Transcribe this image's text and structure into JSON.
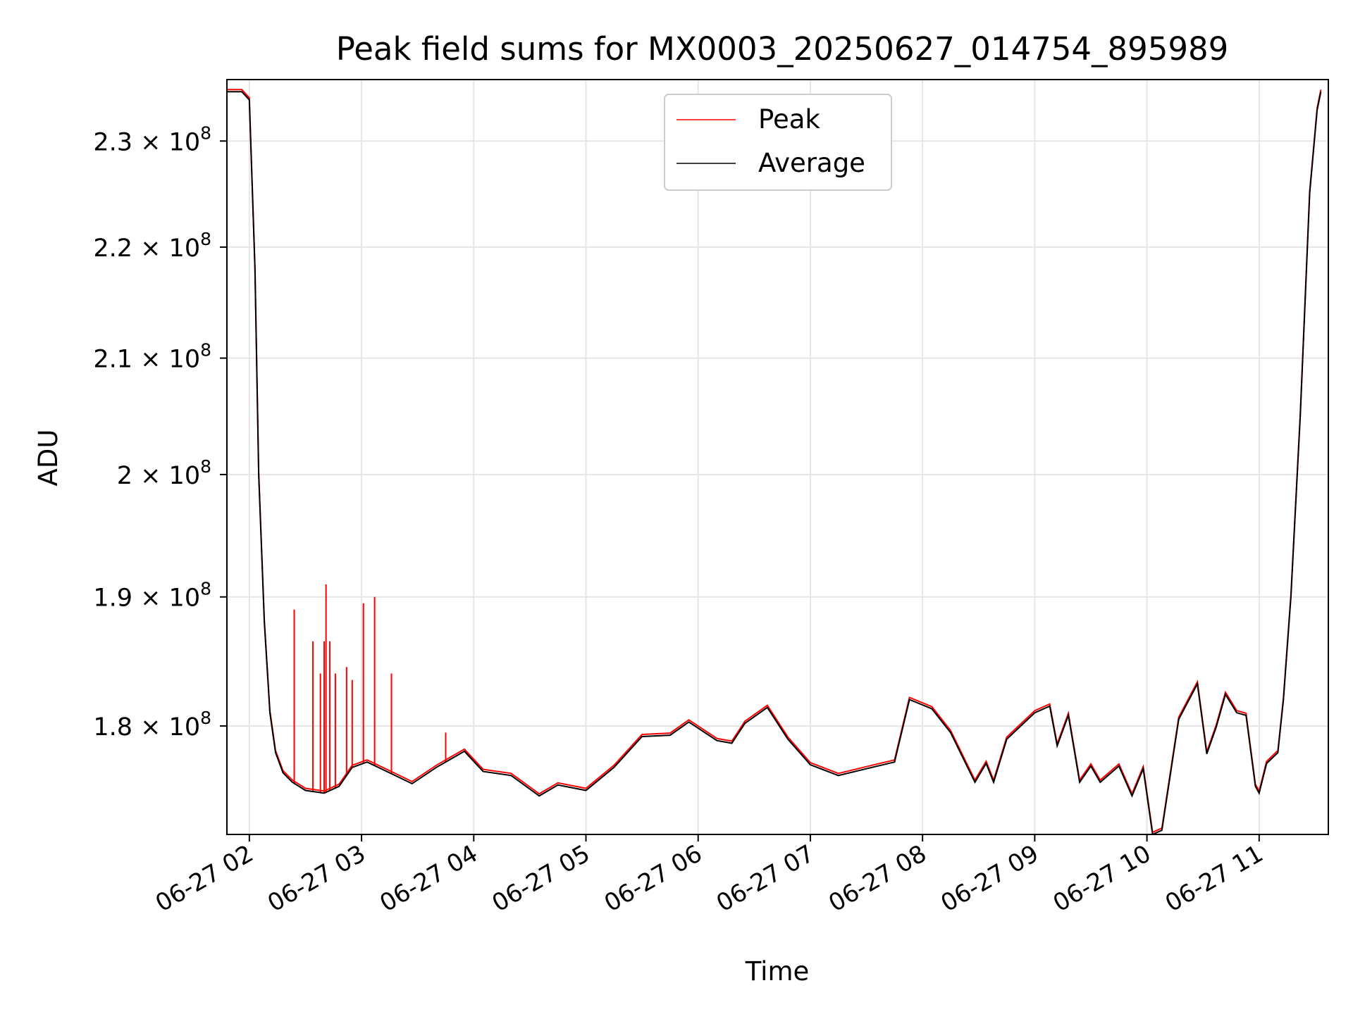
{
  "chart_data": {
    "type": "line",
    "title": "Peak field sums for MX0003_20250627_014754_895989",
    "xlabel": "Time",
    "ylabel": "ADU",
    "xlim": [
      "2025-06-27 01:48",
      "2025-06-27 11:37"
    ],
    "ylim": [
      172000000,
      236000000
    ],
    "yscale": "log",
    "grid": true,
    "legend": "upper center",
    "x_ticks": [
      "2025-06-27 02:00",
      "2025-06-27 03:00",
      "2025-06-27 04:00",
      "2025-06-27 05:00",
      "2025-06-27 06:00",
      "2025-06-27 07:00",
      "2025-06-27 08:00",
      "2025-06-27 09:00",
      "2025-06-27 10:00",
      "2025-06-27 11:00"
    ],
    "x_tick_labels": [
      "06-27 02",
      "06-27 03",
      "06-27 04",
      "06-27 05",
      "06-27 06",
      "06-27 07",
      "06-27 08",
      "06-27 09",
      "06-27 10",
      "06-27 11"
    ],
    "y_ticks": [
      180000000,
      190000000,
      200000000,
      210000000,
      220000000,
      230000000
    ],
    "y_tick_labels": [
      {
        "mantissa": "1.8",
        "exponent": "8"
      },
      {
        "mantissa": "1.9",
        "exponent": "8"
      },
      {
        "mantissa": "2",
        "exponent": "8"
      },
      {
        "mantissa": "2.1",
        "exponent": "8"
      },
      {
        "mantissa": "2.2",
        "exponent": "8"
      },
      {
        "mantissa": "2.3",
        "exponent": "8"
      }
    ],
    "series": [
      {
        "name": "Average",
        "color": "#000000",
        "x": [
          "2025-06-27 01:48",
          "2025-06-27 01:56",
          "2025-06-27 02:00",
          "2025-06-27 02:03",
          "2025-06-27 02:05",
          "2025-06-27 02:08",
          "2025-06-27 02:11",
          "2025-06-27 02:14",
          "2025-06-27 02:18",
          "2025-06-27 02:23",
          "2025-06-27 02:30",
          "2025-06-27 02:40",
          "2025-06-27 02:48",
          "2025-06-27 02:55",
          "2025-06-27 03:03",
          "2025-06-27 03:15",
          "2025-06-27 03:27",
          "2025-06-27 03:40",
          "2025-06-27 03:55",
          "2025-06-27 04:05",
          "2025-06-27 04:20",
          "2025-06-27 04:35",
          "2025-06-27 04:45",
          "2025-06-27 05:00",
          "2025-06-27 05:15",
          "2025-06-27 05:30",
          "2025-06-27 05:45",
          "2025-06-27 05:55",
          "2025-06-27 06:10",
          "2025-06-27 06:18",
          "2025-06-27 06:25",
          "2025-06-27 06:37",
          "2025-06-27 06:48",
          "2025-06-27 07:00",
          "2025-06-27 07:15",
          "2025-06-27 07:30",
          "2025-06-27 07:45",
          "2025-06-27 07:53",
          "2025-06-27 08:05",
          "2025-06-27 08:15",
          "2025-06-27 08:28",
          "2025-06-27 08:34",
          "2025-06-27 08:38",
          "2025-06-27 08:45",
          "2025-06-27 09:00",
          "2025-06-27 09:08",
          "2025-06-27 09:12",
          "2025-06-27 09:18",
          "2025-06-27 09:24",
          "2025-06-27 09:30",
          "2025-06-27 09:35",
          "2025-06-27 09:45",
          "2025-06-27 09:52",
          "2025-06-27 09:58",
          "2025-06-27 10:03",
          "2025-06-27 10:08",
          "2025-06-27 10:17",
          "2025-06-27 10:27",
          "2025-06-27 10:32",
          "2025-06-27 10:37",
          "2025-06-27 10:42",
          "2025-06-27 10:48",
          "2025-06-27 10:53",
          "2025-06-27 10:58",
          "2025-06-27 11:00",
          "2025-06-27 11:04",
          "2025-06-27 11:10",
          "2025-06-27 11:13",
          "2025-06-27 11:17",
          "2025-06-27 11:22",
          "2025-06-27 11:27",
          "2025-06-27 11:31",
          "2025-06-27 11:33"
        ],
        "values": [
          234800000,
          234800000,
          234000000,
          218000000,
          200000000,
          188000000,
          181000000,
          178000000,
          176500000,
          175800000,
          175200000,
          175000000,
          175500000,
          176900000,
          177300000,
          176500000,
          175700000,
          176900000,
          178100000,
          176600000,
          176300000,
          174800000,
          175600000,
          175200000,
          176900000,
          179200000,
          179300000,
          180300000,
          178900000,
          178700000,
          180200000,
          181400000,
          179000000,
          177100000,
          176300000,
          176800000,
          177300000,
          182000000,
          181300000,
          179500000,
          175800000,
          177200000,
          175800000,
          179000000,
          181000000,
          181500000,
          178500000,
          180800000,
          175800000,
          177000000,
          175800000,
          177000000,
          174800000,
          176800000,
          172000000,
          172300000,
          180500000,
          183200000,
          177900000,
          179900000,
          182400000,
          181000000,
          180800000,
          175500000,
          175000000,
          177200000,
          178000000,
          182000000,
          190000000,
          205000000,
          225000000,
          233000000,
          234800000
        ]
      },
      {
        "name": "Peak",
        "color": "#ff0000",
        "spikes": [
          {
            "x": "2025-06-27 02:24",
            "value": 189000000
          },
          {
            "x": "2025-06-27 02:34",
            "value": 186500000
          },
          {
            "x": "2025-06-27 02:38",
            "value": 184000000
          },
          {
            "x": "2025-06-27 02:40",
            "value": 186500000
          },
          {
            "x": "2025-06-27 02:41",
            "value": 191000000
          },
          {
            "x": "2025-06-27 02:43",
            "value": 186500000
          },
          {
            "x": "2025-06-27 02:46",
            "value": 184000000
          },
          {
            "x": "2025-06-27 02:52",
            "value": 184500000
          },
          {
            "x": "2025-06-27 02:55",
            "value": 183500000
          },
          {
            "x": "2025-06-27 03:01",
            "value": 189500000
          },
          {
            "x": "2025-06-27 03:07",
            "value": 190000000
          },
          {
            "x": "2025-06-27 03:16",
            "value": 184000000
          },
          {
            "x": "2025-06-27 03:45",
            "value": 179500000
          }
        ]
      }
    ]
  }
}
